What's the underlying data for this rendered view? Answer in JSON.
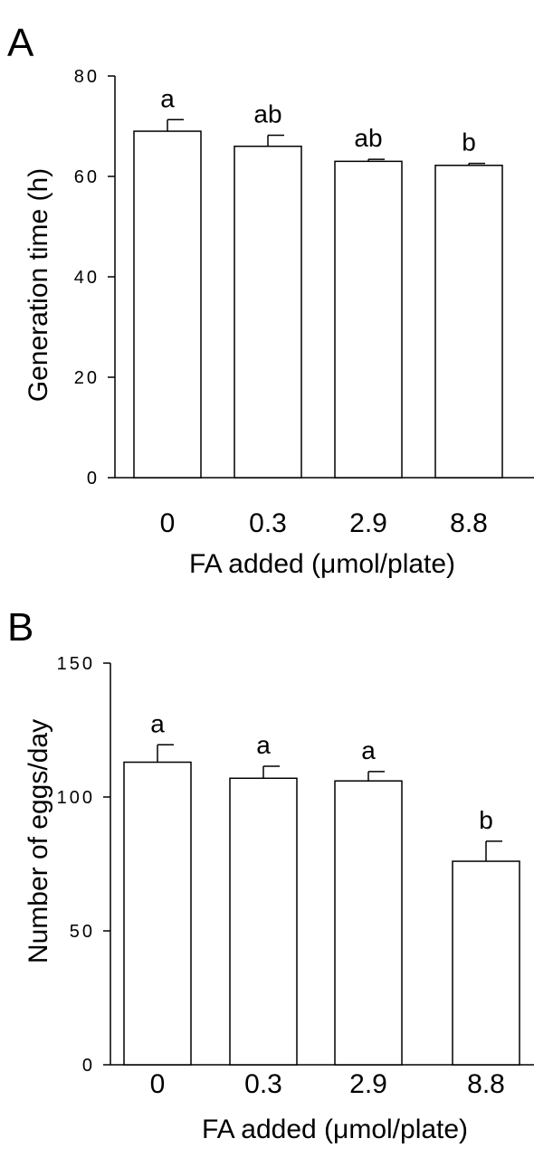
{
  "chart_data": [
    {
      "type": "bar",
      "panel": "A",
      "categories": [
        "0",
        "0.3",
        "2.9",
        "8.8"
      ],
      "values": [
        69,
        66,
        63,
        62.2
      ],
      "errors": [
        2.3,
        2.2,
        0.4,
        0.4
      ],
      "significance": [
        "a",
        "ab",
        "ab",
        "b"
      ],
      "ylabel": "Generation  time (h)",
      "xlabel": "FA added  (μmol/plate)",
      "ylim": [
        0,
        80
      ],
      "yticks": [
        0,
        20,
        40,
        60,
        80
      ],
      "ytick_labels": [
        "0",
        "20",
        "40",
        "60",
        "80"
      ],
      "bar_color": "#ffffff",
      "line_color": "#000000",
      "grid": false
    },
    {
      "type": "bar",
      "panel": "B",
      "categories": [
        "0",
        "0.3",
        "2.9",
        "8.8"
      ],
      "values": [
        113,
        107,
        106,
        76
      ],
      "errors": [
        6.5,
        4.5,
        3.5,
        7.5
      ],
      "significance": [
        "a",
        "a",
        "a",
        "b"
      ],
      "ylabel": "Number of eggs/day",
      "xlabel": "FA added  (μmol/plate)",
      "ylim": [
        0,
        150
      ],
      "yticks": [
        0,
        50,
        100,
        150
      ],
      "ytick_labels": [
        "0",
        "50",
        "100",
        "150"
      ],
      "bar_color": "#ffffff",
      "line_color": "#000000",
      "grid": false
    }
  ]
}
